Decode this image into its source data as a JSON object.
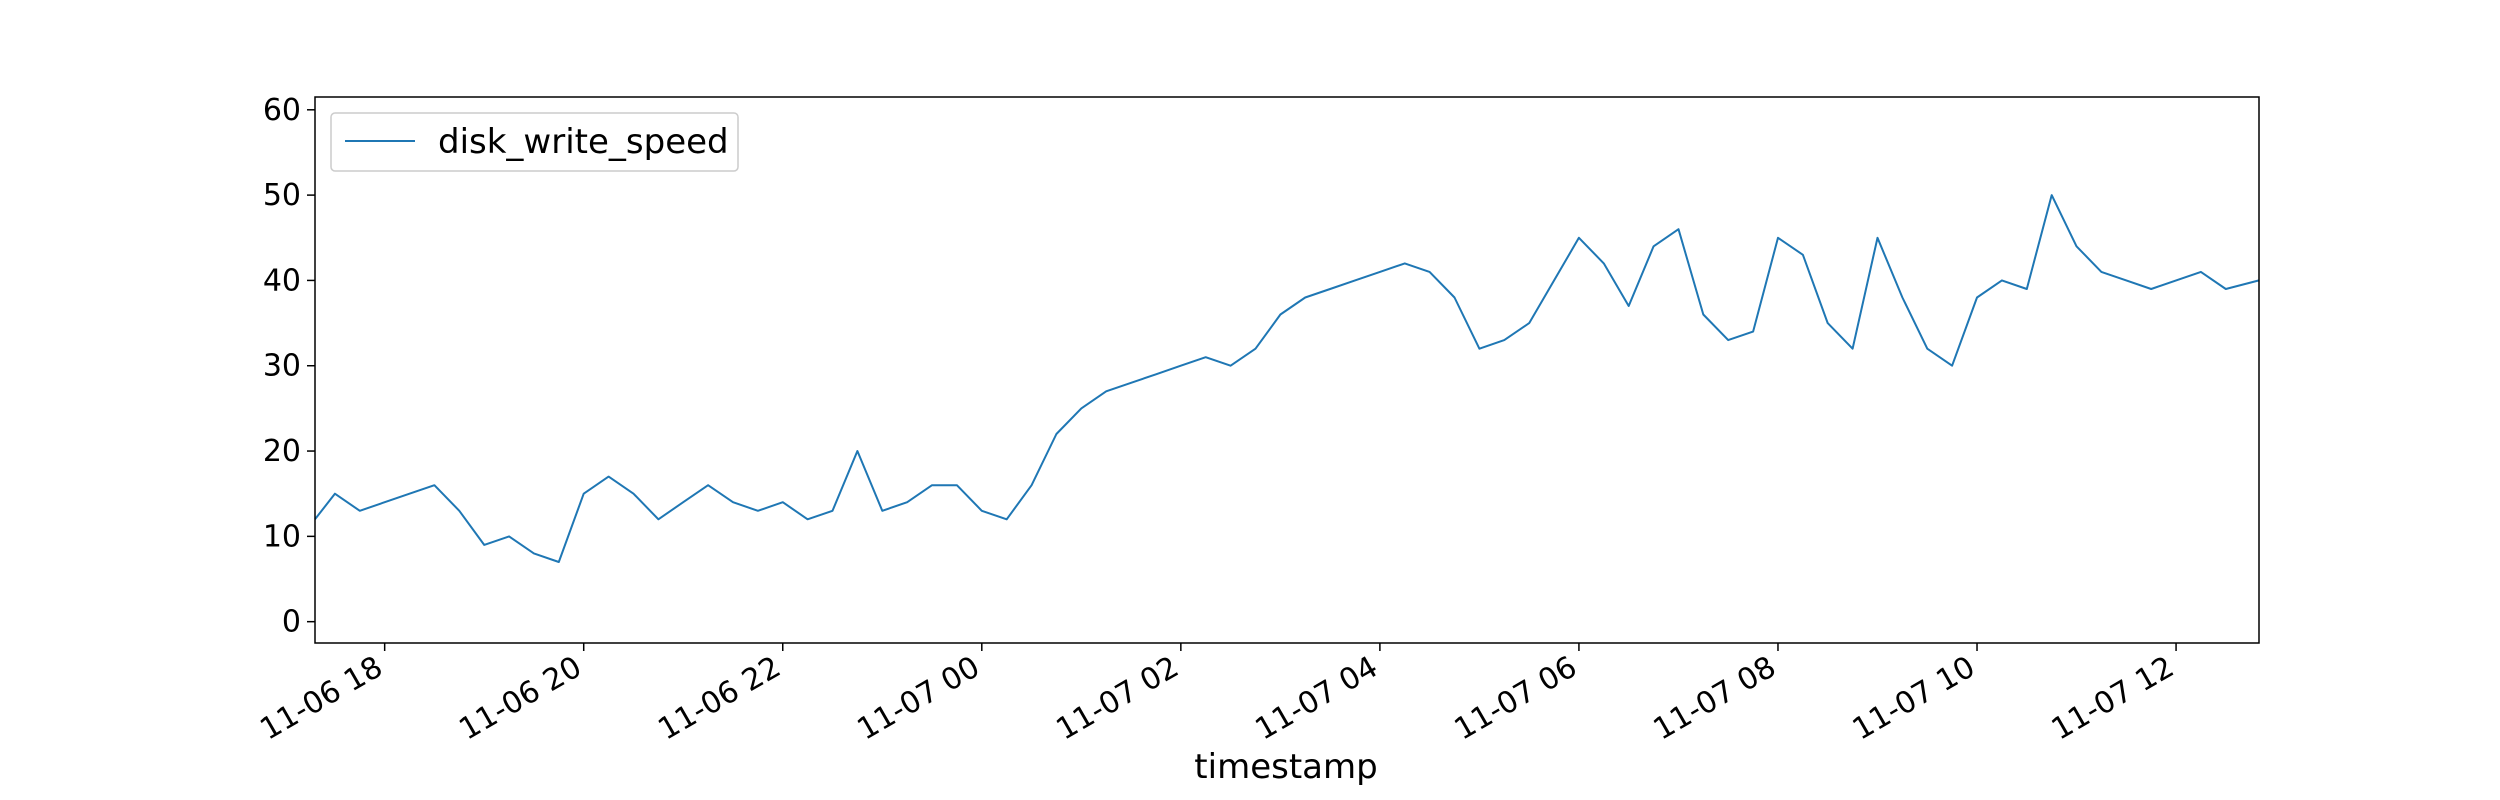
{
  "chart_data": {
    "type": "line",
    "title": "",
    "xlabel": "timestamp",
    "ylabel": "",
    "x_type": "datetime",
    "x_range": [
      "2019-11-06 17:18",
      "2019-11-07 12:50"
    ],
    "ylim": [
      -2.5,
      61.5
    ],
    "y_ticks": [
      0,
      10,
      20,
      30,
      40,
      50,
      60
    ],
    "x_ticks": [
      {
        "t": "2019-11-06 18:00",
        "label": "11-06 18"
      },
      {
        "t": "2019-11-06 20:00",
        "label": "11-06 20"
      },
      {
        "t": "2019-11-06 22:00",
        "label": "11-06 22"
      },
      {
        "t": "2019-11-07 00:00",
        "label": "11-07 00"
      },
      {
        "t": "2019-11-07 02:00",
        "label": "11-07 02"
      },
      {
        "t": "2019-11-07 04:00",
        "label": "11-07 04"
      },
      {
        "t": "2019-11-07 06:00",
        "label": "11-07 06"
      },
      {
        "t": "2019-11-07 08:00",
        "label": "11-07 08"
      },
      {
        "t": "2019-11-07 10:00",
        "label": "11-07 10"
      },
      {
        "t": "2019-11-07 12:00",
        "label": "11-07 12"
      }
    ],
    "legend": {
      "position": "upper-left",
      "entries": [
        "disk_write_speed"
      ]
    },
    "grid": false,
    "series": [
      {
        "name": "disk_write_speed",
        "color": "#1f77b4",
        "points": [
          [
            "2019-11-06 17:18",
            12
          ],
          [
            "2019-11-06 17:30",
            15
          ],
          [
            "2019-11-06 17:45",
            13
          ],
          [
            "2019-11-06 18:00",
            14
          ],
          [
            "2019-11-06 18:15",
            15
          ],
          [
            "2019-11-06 18:30",
            16
          ],
          [
            "2019-11-06 18:45",
            13
          ],
          [
            "2019-11-06 19:00",
            9
          ],
          [
            "2019-11-06 19:15",
            10
          ],
          [
            "2019-11-06 19:30",
            8
          ],
          [
            "2019-11-06 19:45",
            7
          ],
          [
            "2019-11-06 20:00",
            15
          ],
          [
            "2019-11-06 20:15",
            17
          ],
          [
            "2019-11-06 20:30",
            15
          ],
          [
            "2019-11-06 20:45",
            12
          ],
          [
            "2019-11-06 21:00",
            14
          ],
          [
            "2019-11-06 21:15",
            16
          ],
          [
            "2019-11-06 21:30",
            14
          ],
          [
            "2019-11-06 21:45",
            13
          ],
          [
            "2019-11-06 22:00",
            14
          ],
          [
            "2019-11-06 22:15",
            12
          ],
          [
            "2019-11-06 22:30",
            13
          ],
          [
            "2019-11-06 22:45",
            20
          ],
          [
            "2019-11-06 23:00",
            13
          ],
          [
            "2019-11-06 23:15",
            14
          ],
          [
            "2019-11-06 23:30",
            16
          ],
          [
            "2019-11-06 23:45",
            16
          ],
          [
            "2019-11-07 00:00",
            13
          ],
          [
            "2019-11-07 00:15",
            12
          ],
          [
            "2019-11-07 00:30",
            16
          ],
          [
            "2019-11-07 00:45",
            22
          ],
          [
            "2019-11-07 01:00",
            25
          ],
          [
            "2019-11-07 01:15",
            27
          ],
          [
            "2019-11-07 01:30",
            28
          ],
          [
            "2019-11-07 01:45",
            29
          ],
          [
            "2019-11-07 02:00",
            30
          ],
          [
            "2019-11-07 02:15",
            31
          ],
          [
            "2019-11-07 02:30",
            30
          ],
          [
            "2019-11-07 02:45",
            32
          ],
          [
            "2019-11-07 03:00",
            36
          ],
          [
            "2019-11-07 03:15",
            38
          ],
          [
            "2019-11-07 03:30",
            39
          ],
          [
            "2019-11-07 03:45",
            40
          ],
          [
            "2019-11-07 04:00",
            41
          ],
          [
            "2019-11-07 04:15",
            42
          ],
          [
            "2019-11-07 04:30",
            41
          ],
          [
            "2019-11-07 04:45",
            38
          ],
          [
            "2019-11-07 05:00",
            32
          ],
          [
            "2019-11-07 05:15",
            33
          ],
          [
            "2019-11-07 05:30",
            35
          ],
          [
            "2019-11-07 05:45",
            40
          ],
          [
            "2019-11-07 06:00",
            45
          ],
          [
            "2019-11-07 06:15",
            42
          ],
          [
            "2019-11-07 06:30",
            37
          ],
          [
            "2019-11-07 06:45",
            44
          ],
          [
            "2019-11-07 07:00",
            46
          ],
          [
            "2019-11-07 07:15",
            36
          ],
          [
            "2019-11-07 07:30",
            33
          ],
          [
            "2019-11-07 07:45",
            34
          ],
          [
            "2019-11-07 08:00",
            45
          ],
          [
            "2019-11-07 08:15",
            43
          ],
          [
            "2019-11-07 08:30",
            35
          ],
          [
            "2019-11-07 08:45",
            32
          ],
          [
            "2019-11-07 09:00",
            45
          ],
          [
            "2019-11-07 09:15",
            38
          ],
          [
            "2019-11-07 09:30",
            32
          ],
          [
            "2019-11-07 09:45",
            30
          ],
          [
            "2019-11-07 10:00",
            38
          ],
          [
            "2019-11-07 10:15",
            40
          ],
          [
            "2019-11-07 10:30",
            39
          ],
          [
            "2019-11-07 10:45",
            50
          ],
          [
            "2019-11-07 11:00",
            44
          ],
          [
            "2019-11-07 11:15",
            41
          ],
          [
            "2019-11-07 11:30",
            40
          ],
          [
            "2019-11-07 11:45",
            39
          ],
          [
            "2019-11-07 12:00",
            40
          ],
          [
            "2019-11-07 12:15",
            41
          ],
          [
            "2019-11-07 12:30",
            39
          ],
          [
            "2019-11-07 12:50",
            40
          ]
        ]
      }
    ]
  }
}
